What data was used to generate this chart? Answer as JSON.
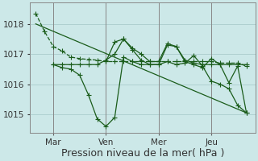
{
  "bg_color": "#cce8e8",
  "grid_color": "#aacccc",
  "line_color": "#1a5c1a",
  "ylim": [
    1014.4,
    1018.7
  ],
  "yticks": [
    1015,
    1016,
    1017,
    1018
  ],
  "xlabel": "Pression niveau de la mer( hPa )",
  "xlabel_fontsize": 9,
  "tick_fontsize": 7.5,
  "day_labels": [
    "Mar",
    "Ven",
    "Mer",
    "Jeu"
  ],
  "day_positions": [
    16,
    64,
    112,
    160
  ],
  "vlines": [
    16,
    64,
    112,
    160
  ],
  "figsize": [
    3.2,
    2.0
  ],
  "dpi": 100,
  "series": [
    {
      "x": [
        0,
        8,
        16,
        24,
        32,
        40,
        48,
        56,
        64,
        72,
        80,
        88,
        96,
        104,
        112,
        120,
        128,
        136,
        144,
        152,
        160,
        168,
        176,
        184,
        192
      ],
      "y": [
        1018.35,
        1017.75,
        1017.25,
        1017.1,
        1016.9,
        1016.85,
        1016.82,
        1016.8,
        1016.75,
        1016.75,
        1016.75,
        1016.75,
        1016.75,
        1016.75,
        1016.75,
        1016.75,
        1016.75,
        1016.75,
        1016.75,
        1016.75,
        1016.75,
        1016.7,
        1016.7,
        1016.7,
        1016.6
      ],
      "ls": "--",
      "marker": "+",
      "ms": 4,
      "lw": 0.9
    },
    {
      "x": [
        16,
        24,
        32,
        40,
        48,
        56,
        64,
        72,
        80,
        88,
        96,
        104,
        112,
        120,
        128,
        136,
        144,
        152,
        160,
        168,
        176,
        184,
        192
      ],
      "y": [
        1016.65,
        1016.55,
        1016.5,
        1016.3,
        1015.65,
        1014.85,
        1014.6,
        1014.9,
        1016.9,
        1016.75,
        1016.65,
        1016.65,
        1016.65,
        1016.75,
        1016.65,
        1016.7,
        1016.95,
        1016.6,
        1016.1,
        1016.0,
        1015.85,
        1015.3,
        1015.05
      ],
      "ls": "-",
      "marker": "+",
      "ms": 4,
      "lw": 0.9
    },
    {
      "x": [
        16,
        24,
        32,
        40,
        48,
        56,
        64,
        72,
        80,
        88,
        96,
        104,
        112,
        120,
        128,
        136,
        144,
        152,
        160,
        168,
        176,
        184,
        192
      ],
      "y": [
        1016.65,
        1016.65,
        1016.65,
        1016.65,
        1016.65,
        1016.65,
        1016.8,
        1017.0,
        1017.5,
        1017.15,
        1016.8,
        1016.65,
        1016.65,
        1017.3,
        1017.25,
        1016.8,
        1016.7,
        1016.65,
        1016.65,
        1016.65,
        1016.65,
        1016.65,
        1016.65
      ],
      "ls": "-",
      "marker": "+",
      "ms": 4,
      "lw": 0.9
    },
    {
      "x": [
        0,
        192
      ],
      "y": [
        1018.0,
        1015.05
      ],
      "ls": "-",
      "marker": null,
      "ms": 0,
      "lw": 0.9
    },
    {
      "x": [
        64,
        72,
        80,
        88,
        96,
        104,
        112,
        120,
        128,
        136,
        144,
        152,
        160,
        168,
        176,
        184,
        192
      ],
      "y": [
        1016.75,
        1017.4,
        1017.5,
        1017.2,
        1017.0,
        1016.75,
        1016.75,
        1017.35,
        1017.25,
        1016.75,
        1016.65,
        1016.55,
        1016.85,
        1016.65,
        1016.05,
        1016.6,
        1015.05
      ],
      "ls": "-",
      "marker": "+",
      "ms": 4,
      "lw": 0.9
    }
  ]
}
